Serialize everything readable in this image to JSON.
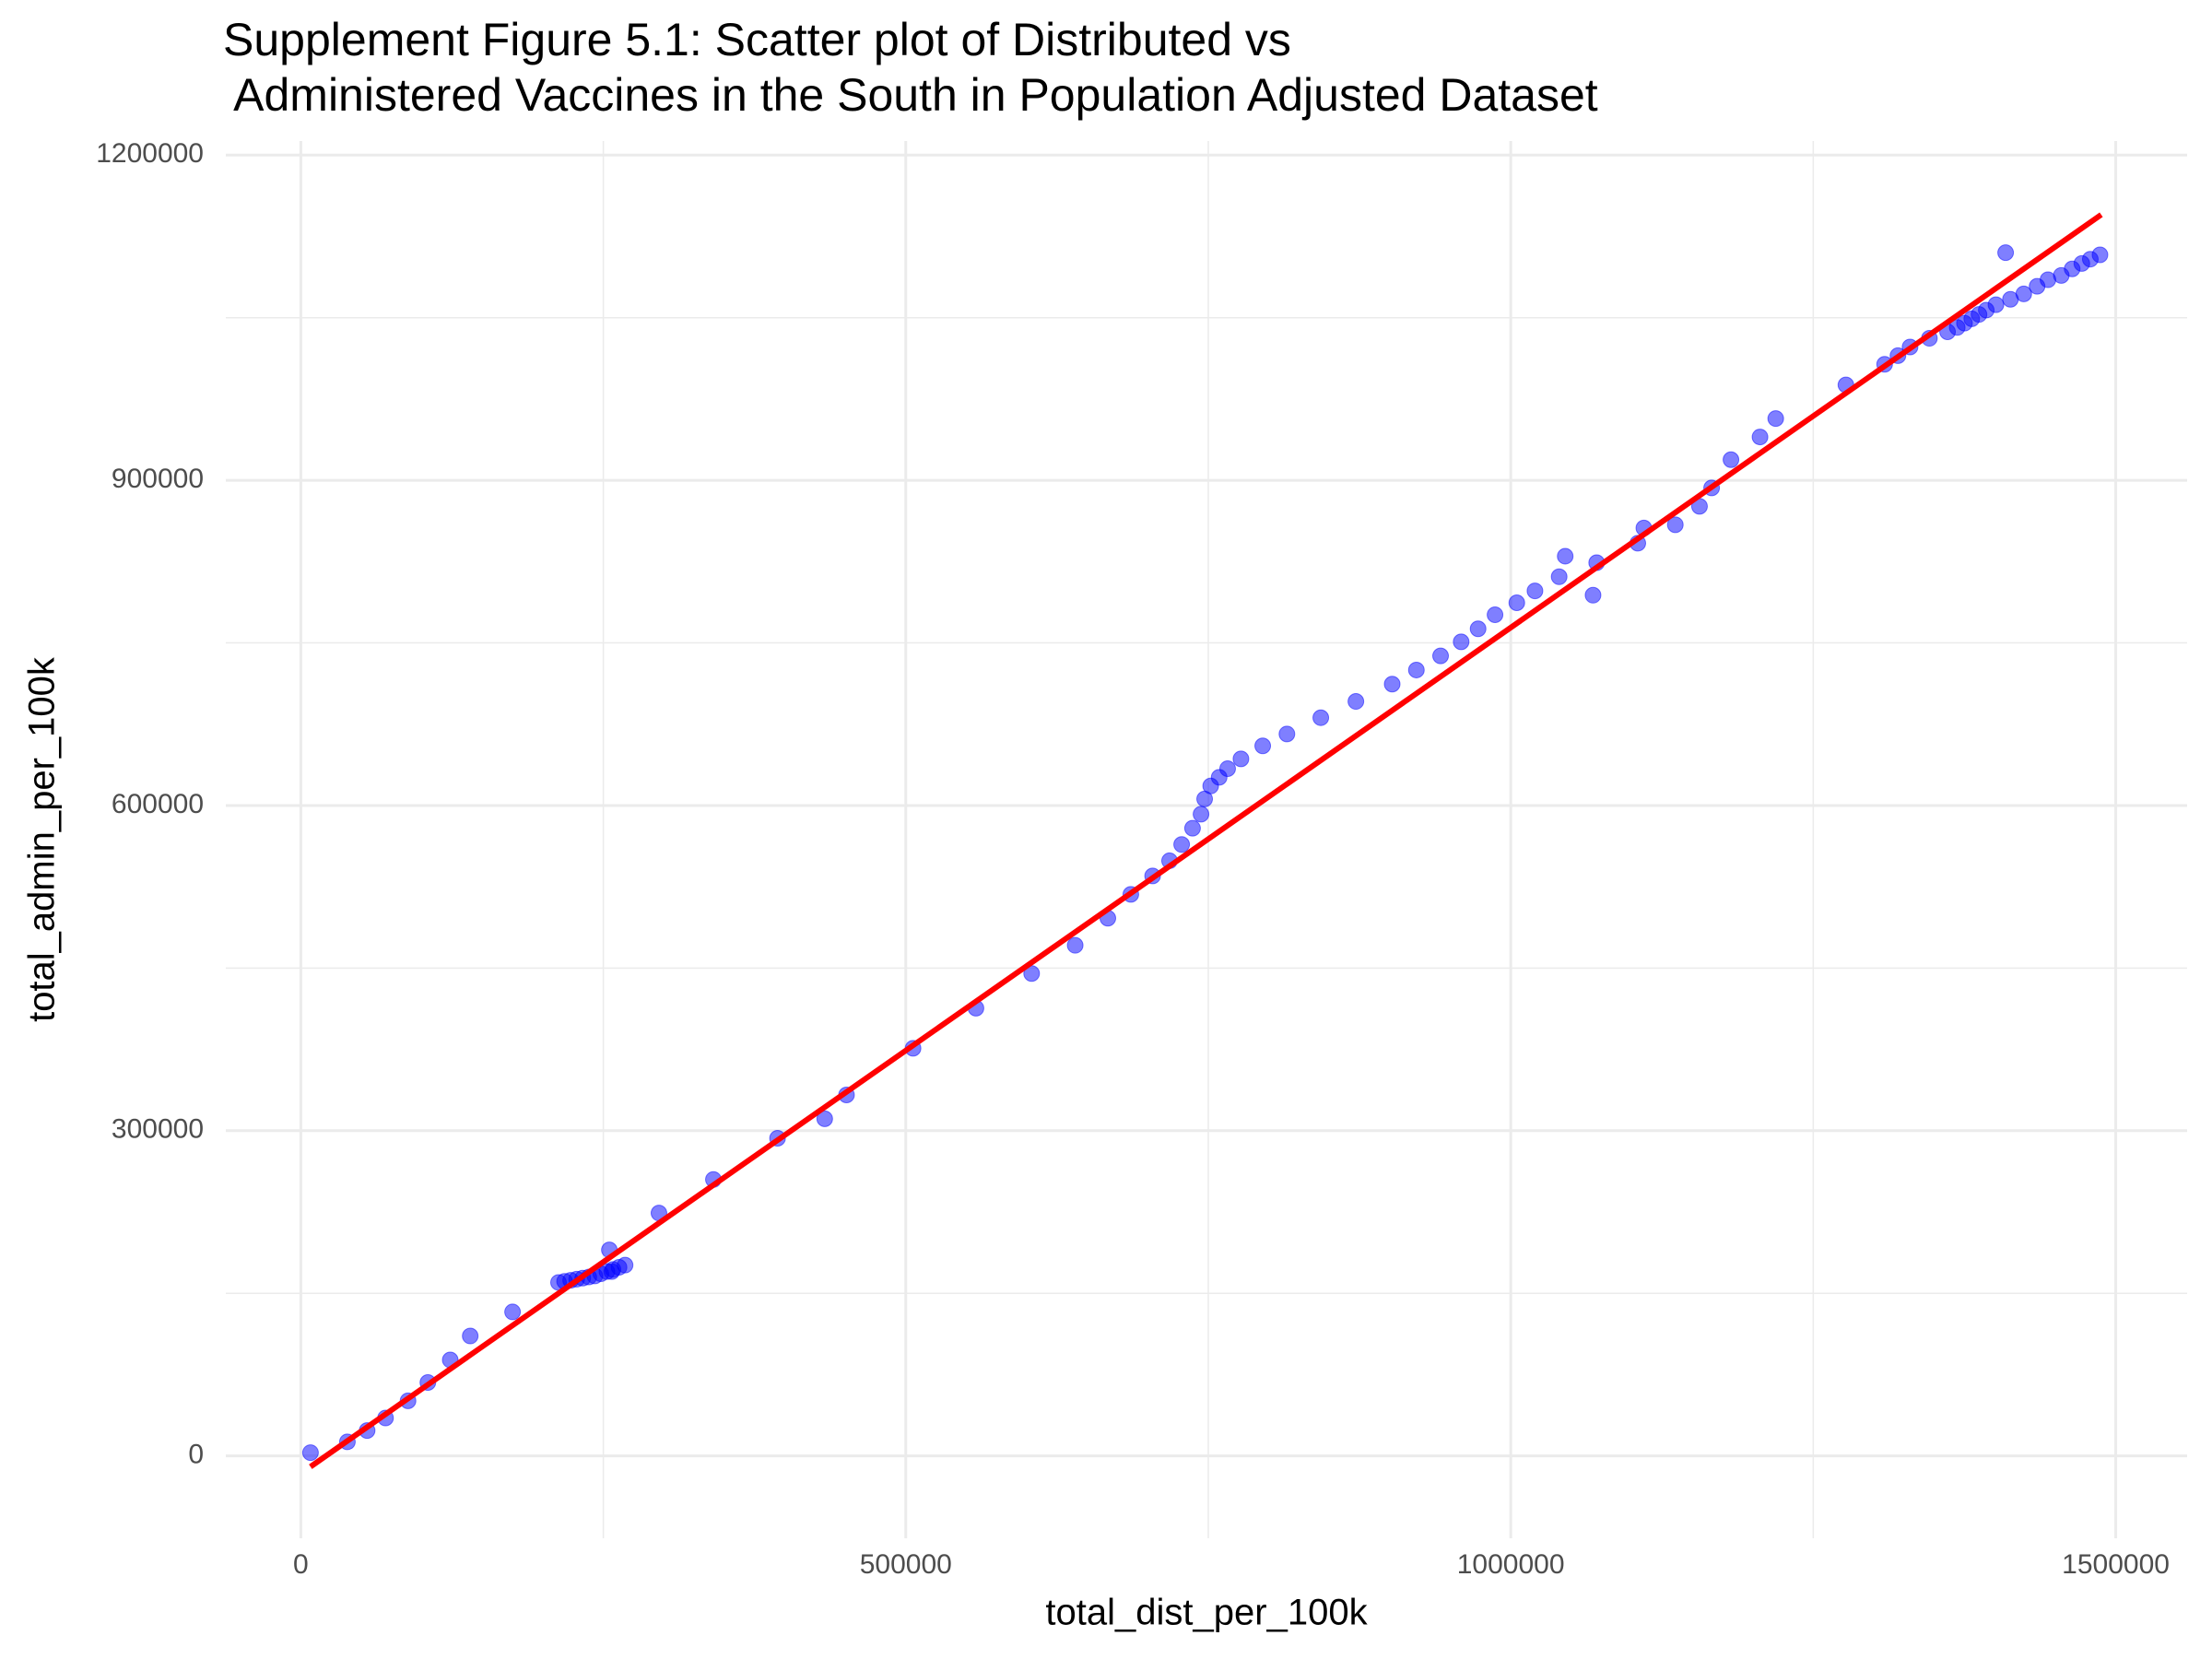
{
  "chart_data": {
    "type": "scatter",
    "title": [
      "Supplement Figure 5.1: Scatter plot of Distributed vs",
      " Administered Vaccines in the South in Population Adjusted Dataset"
    ],
    "x_label": "total_dist_per_100k",
    "y_label": "total_admin_per_100k",
    "xlim": [
      -62000,
      1559000
    ],
    "ylim": [
      -76000,
      1213000
    ],
    "xticks": [
      0,
      500000,
      1000000,
      1500000
    ],
    "yticks": [
      0,
      300000,
      600000,
      900000,
      1200000
    ],
    "xminor": [
      250000,
      750000,
      1250000
    ],
    "yminor": [
      150000,
      450000,
      750000,
      1050000
    ],
    "grid": true,
    "points": {
      "color": "blue",
      "x": [
        8000,
        38500,
        54800,
        70000,
        88600,
        105000,
        123500,
        140000,
        175000,
        213000,
        218000,
        223000,
        228000,
        233000,
        238000,
        243000,
        248000,
        253000,
        257000,
        258000,
        263000,
        268000,
        255000,
        296000,
        341000,
        394000,
        433000,
        451000,
        506000,
        558000,
        604000,
        640000,
        667000,
        686000,
        704000,
        718000,
        728000,
        737000,
        744000,
        747000,
        752000,
        759000,
        766000,
        777000,
        795000,
        815000,
        843000,
        872000,
        902000,
        922000,
        942000,
        959000,
        973000,
        987000,
        1005000,
        1020000,
        1040000,
        1045000,
        1068000,
        1071000,
        1105000,
        1110000,
        1136000,
        1156000,
        1166000,
        1182000,
        1206000,
        1219000,
        1277000,
        1309000,
        1320000,
        1330000,
        1346000,
        1361000,
        1369000,
        1375000,
        1381000,
        1387000,
        1393000,
        1401000,
        1409000,
        1413000,
        1424000,
        1435000,
        1444000,
        1455000,
        1464000,
        1472000,
        1479000,
        1487000
      ],
      "y": [
        3000,
        13000,
        23400,
        35000,
        50800,
        67700,
        88500,
        110600,
        132800,
        160000,
        161000,
        162000,
        163000,
        164000,
        165000,
        166000,
        168000,
        170000,
        170000,
        172000,
        174000,
        176000,
        190000,
        224000,
        255000,
        293000,
        311000,
        333000,
        376000,
        413000,
        445000,
        471000,
        496000,
        518000,
        535000,
        549000,
        564000,
        579000,
        592000,
        606000,
        618000,
        626000,
        634000,
        643000,
        655000,
        666000,
        681000,
        696000,
        712000,
        725000,
        738000,
        751000,
        763000,
        776000,
        787000,
        798000,
        811000,
        830000,
        794000,
        824000,
        842000,
        856000,
        859000,
        876000,
        893000,
        919000,
        940000,
        957000,
        988000,
        1007000,
        1015000,
        1023000,
        1031000,
        1037000,
        1041000,
        1045000,
        1049000,
        1053000,
        1057000,
        1062000,
        1110000,
        1067000,
        1072000,
        1079000,
        1085000,
        1089000,
        1095000,
        1100000,
        1104000,
        1108000
      ]
    },
    "trend": {
      "color": "red",
      "x": [
        8000,
        1488000
      ],
      "y": [
        -10000,
        1145000
      ]
    }
  }
}
